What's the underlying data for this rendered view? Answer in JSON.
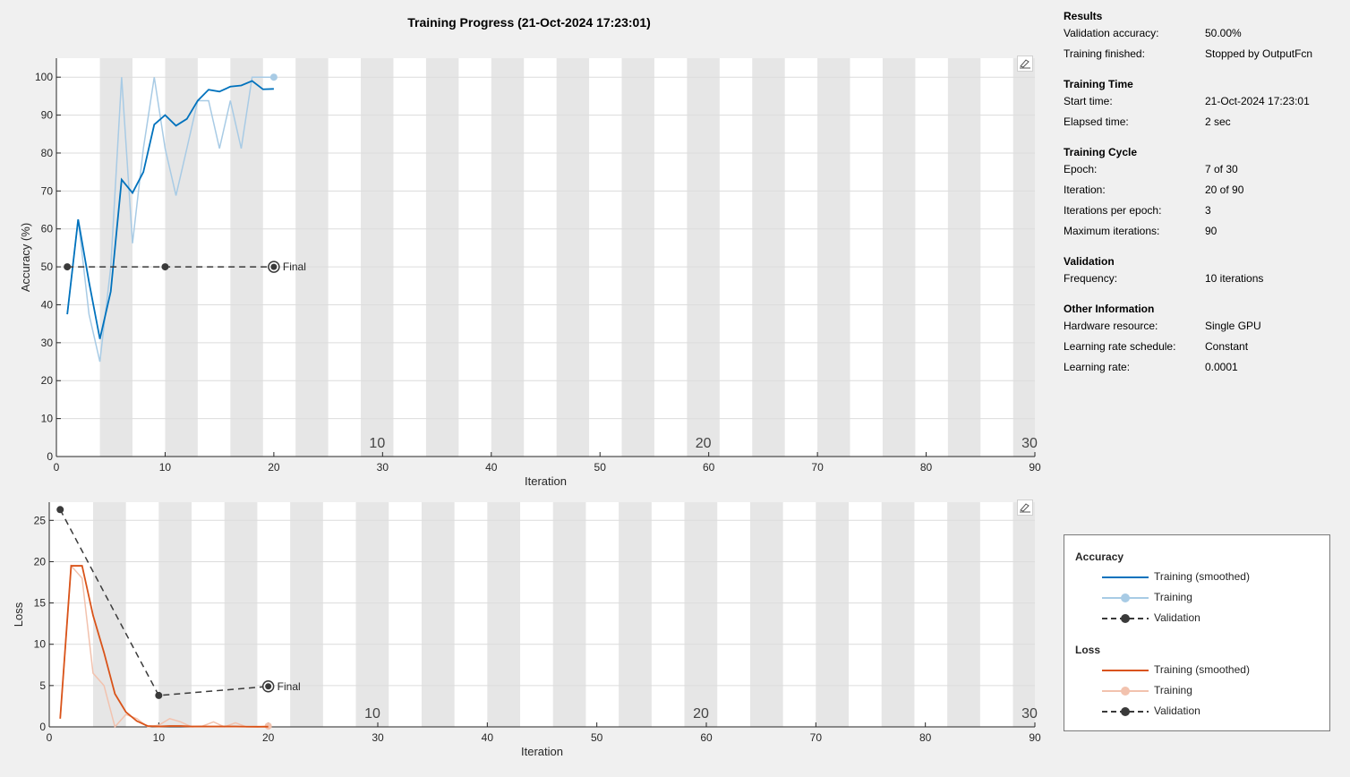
{
  "title": "Training Progress (21-Oct-2024 17:23:01)",
  "colors": {
    "train_smoothed_acc": "#0072bd",
    "train_acc": "#a8cbe5",
    "validation": "#3a3a3a",
    "train_smoothed_loss": "#d95319",
    "train_loss": "#f2c2ae",
    "band": "#e6e6e6",
    "grid": "#dcdcdc"
  },
  "info": {
    "sections": [
      {
        "title": "Results",
        "rows": [
          {
            "key": "Validation accuracy:",
            "value": "50.00%"
          },
          {
            "key": "Training finished:",
            "value": "Stopped by OutputFcn"
          }
        ]
      },
      {
        "title": "Training Time",
        "rows": [
          {
            "key": "Start time:",
            "value": "21-Oct-2024 17:23:01"
          },
          {
            "key": "Elapsed time:",
            "value": "2 sec"
          }
        ]
      },
      {
        "title": "Training Cycle",
        "rows": [
          {
            "key": "Epoch:",
            "value": "7 of 30"
          },
          {
            "key": "Iteration:",
            "value": "20 of 90"
          },
          {
            "key": "Iterations per epoch:",
            "value": "3"
          },
          {
            "key": "Maximum iterations:",
            "value": "90"
          }
        ]
      },
      {
        "title": "Validation",
        "rows": [
          {
            "key": "Frequency:",
            "value": "10 iterations"
          }
        ]
      },
      {
        "title": "Other Information",
        "rows": [
          {
            "key": "Hardware resource:",
            "value": "Single GPU"
          },
          {
            "key": "Learning rate schedule:",
            "value": "Constant"
          },
          {
            "key": "Learning rate:",
            "value": "0.0001"
          }
        ]
      }
    ]
  },
  "legend": {
    "accuracy_title": "Accuracy",
    "loss_title": "Loss",
    "train_smoothed": "Training (smoothed)",
    "train": "Training",
    "validation": "Validation"
  },
  "chart_data": [
    {
      "type": "line",
      "xlabel": "Iteration",
      "ylabel": "Accuracy (%)",
      "xlim": [
        0,
        90
      ],
      "ylim": [
        0,
        105
      ],
      "xticks": [
        0,
        10,
        20,
        30,
        40,
        50,
        60,
        70,
        80,
        90
      ],
      "yticks": [
        0,
        10,
        20,
        30,
        40,
        50,
        60,
        70,
        80,
        90,
        100
      ],
      "grid": true,
      "iterations_per_epoch": 3,
      "epoch_labels": [
        10,
        20,
        30
      ],
      "final_label": "Final",
      "series": [
        {
          "name": "Training (smoothed)",
          "x": [
            1,
            2,
            3,
            4,
            5,
            6,
            7,
            8,
            9,
            10,
            11,
            12,
            13,
            14,
            15,
            16,
            17,
            18,
            19,
            20
          ],
          "values": [
            37.5,
            62.5,
            46,
            31,
            43.5,
            73,
            69.5,
            75,
            87.5,
            90,
            87.2,
            89,
            93.8,
            96.7,
            96.2,
            97.5,
            97.8,
            99,
            96.8,
            96.9
          ]
        },
        {
          "name": "Training",
          "x": [
            1,
            2,
            3,
            4,
            5,
            6,
            7,
            8,
            9,
            10,
            11,
            12,
            13,
            14,
            15,
            16,
            17,
            18,
            19,
            20
          ],
          "values": [
            37.5,
            62.5,
            37.5,
            25,
            50,
            100,
            56.2,
            81.2,
            100,
            81.2,
            68.8,
            81.2,
            93.8,
            93.8,
            81.2,
            93.8,
            81.2,
            100,
            100,
            100
          ]
        },
        {
          "name": "Validation",
          "x": [
            1,
            10,
            20
          ],
          "values": [
            50,
            50,
            50
          ]
        }
      ]
    },
    {
      "type": "line",
      "xlabel": "Iteration",
      "ylabel": "Loss",
      "xlim": [
        0,
        90
      ],
      "ylim": [
        0,
        27.2
      ],
      "xticks": [
        0,
        10,
        20,
        30,
        40,
        50,
        60,
        70,
        80,
        90
      ],
      "yticks": [
        0,
        5,
        10,
        15,
        20,
        25
      ],
      "grid": true,
      "iterations_per_epoch": 3,
      "epoch_labels": [
        10,
        20,
        30
      ],
      "final_label": "Final",
      "series": [
        {
          "name": "Training (smoothed)",
          "x": [
            1,
            2,
            3,
            4,
            5,
            6,
            7,
            8,
            9,
            10,
            11,
            12,
            13,
            14,
            15,
            16,
            17,
            18,
            19,
            20
          ],
          "values": [
            1,
            19.5,
            19.5,
            13.5,
            9,
            4,
            1.8,
            0.7,
            0.1,
            0.05,
            0.1,
            0.1,
            0.05,
            0.05,
            0.05,
            0.05,
            0.05,
            0.03,
            0.02,
            0.02
          ]
        },
        {
          "name": "Training",
          "x": [
            1,
            2,
            3,
            4,
            5,
            6,
            7,
            8,
            9,
            10,
            11,
            12,
            13,
            14,
            15,
            16,
            17,
            18,
            19,
            20
          ],
          "values": [
            1,
            19.5,
            18,
            6.5,
            5,
            0,
            1.5,
            1,
            0,
            0.2,
            1,
            0.6,
            0,
            0.1,
            0.6,
            0,
            0.5,
            0,
            0,
            0.1
          ]
        },
        {
          "name": "Validation",
          "x": [
            1,
            10,
            20
          ],
          "values": [
            26.3,
            3.8,
            4.9
          ]
        }
      ]
    }
  ]
}
